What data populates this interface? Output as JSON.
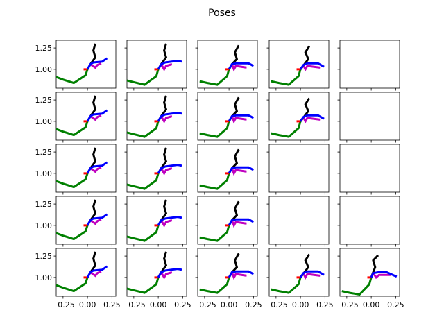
{
  "chart_data": {
    "type": "line",
    "title": "Poses",
    "grid": false,
    "legend": "none",
    "rows": 5,
    "cols": 5,
    "xlim": [
      -0.32,
      0.29
    ],
    "ylim": [
      0.78,
      1.34
    ],
    "x_ticks": [
      -0.25,
      0.0,
      0.25
    ],
    "x_tick_labels": [
      "−0.25",
      "0.00",
      "0.25"
    ],
    "y_ticks": [
      1.0,
      1.25
    ],
    "y_tick_labels": [
      "1.00",
      "1.25"
    ],
    "limb_colors": {
      "spine": "#000000",
      "left_leg": "#008000",
      "right_leg": "#0000ff",
      "left_arm": "#bf00bf",
      "right_arm": "#ff0000"
    },
    "subplots": [
      {
        "row": 0,
        "col": 0,
        "pose": "A"
      },
      {
        "row": 0,
        "col": 1,
        "pose": "B"
      },
      {
        "row": 0,
        "col": 2,
        "pose": "C"
      },
      {
        "row": 0,
        "col": 3,
        "pose": "D"
      },
      {
        "row": 0,
        "col": 4,
        "pose": null
      },
      {
        "row": 1,
        "col": 0,
        "pose": "A"
      },
      {
        "row": 1,
        "col": 1,
        "pose": "B"
      },
      {
        "row": 1,
        "col": 2,
        "pose": "C"
      },
      {
        "row": 1,
        "col": 3,
        "pose": "D"
      },
      {
        "row": 1,
        "col": 4,
        "pose": null
      },
      {
        "row": 2,
        "col": 0,
        "pose": "A"
      },
      {
        "row": 2,
        "col": 1,
        "pose": "B"
      },
      {
        "row": 2,
        "col": 2,
        "pose": "C"
      },
      {
        "row": 2,
        "col": 3,
        "pose": null
      },
      {
        "row": 2,
        "col": 4,
        "pose": null
      },
      {
        "row": 3,
        "col": 0,
        "pose": "A"
      },
      {
        "row": 3,
        "col": 1,
        "pose": "B"
      },
      {
        "row": 3,
        "col": 2,
        "pose": "C"
      },
      {
        "row": 3,
        "col": 3,
        "pose": null
      },
      {
        "row": 3,
        "col": 4,
        "pose": null
      },
      {
        "row": 4,
        "col": 0,
        "pose": "A"
      },
      {
        "row": 4,
        "col": 1,
        "pose": "B"
      },
      {
        "row": 4,
        "col": 2,
        "pose": "C"
      },
      {
        "row": 4,
        "col": 3,
        "pose": "D"
      },
      {
        "row": 4,
        "col": 4,
        "pose": "E"
      }
    ],
    "poses": {
      "A": {
        "spine": [
          [
            0.08,
            1.3
          ],
          [
            0.06,
            1.22
          ],
          [
            0.08,
            1.14
          ],
          [
            0.03,
            1.06
          ],
          [
            0.0,
            1.0
          ]
        ],
        "left_leg": [
          [
            -0.32,
            0.91
          ],
          [
            -0.25,
            0.88
          ],
          [
            -0.14,
            0.84
          ],
          [
            -0.02,
            0.93
          ],
          [
            0.0,
            1.0
          ]
        ],
        "right_leg": [
          [
            0.0,
            1.0
          ],
          [
            0.03,
            1.06
          ],
          [
            0.06,
            1.08
          ],
          [
            0.15,
            1.09
          ],
          [
            0.2,
            1.13
          ]
        ],
        "left_arm": [
          [
            0.03,
            1.06
          ],
          [
            0.08,
            1.02
          ],
          [
            0.1,
            1.05
          ],
          [
            0.14,
            1.07
          ]
        ],
        "right_arm": [
          [
            -0.04,
            1.0
          ],
          [
            0.0,
            1.0
          ]
        ]
      },
      "B": {
        "spine": [
          [
            0.08,
            1.3
          ],
          [
            0.06,
            1.22
          ],
          [
            0.08,
            1.14
          ],
          [
            0.03,
            1.06
          ],
          [
            0.0,
            1.0
          ]
        ],
        "left_leg": [
          [
            -0.32,
            0.87
          ],
          [
            -0.25,
            0.85
          ],
          [
            -0.14,
            0.82
          ],
          [
            -0.02,
            0.92
          ],
          [
            0.0,
            1.0
          ]
        ],
        "right_leg": [
          [
            0.0,
            1.0
          ],
          [
            0.03,
            1.06
          ],
          [
            0.07,
            1.08
          ],
          [
            0.2,
            1.1
          ],
          [
            0.24,
            1.09
          ]
        ],
        "left_arm": [
          [
            0.03,
            1.06
          ],
          [
            0.06,
            1.0
          ],
          [
            0.08,
            1.04
          ],
          [
            0.14,
            1.06
          ]
        ],
        "right_arm": [
          [
            -0.04,
            1.0
          ],
          [
            0.0,
            1.0
          ]
        ]
      },
      "C": {
        "spine": [
          [
            0.1,
            1.28
          ],
          [
            0.06,
            1.2
          ],
          [
            0.08,
            1.12
          ],
          [
            0.03,
            1.06
          ],
          [
            0.0,
            1.0
          ]
        ],
        "left_leg": [
          [
            -0.3,
            0.86
          ],
          [
            -0.22,
            0.84
          ],
          [
            -0.12,
            0.82
          ],
          [
            -0.02,
            0.92
          ],
          [
            0.0,
            1.0
          ]
        ],
        "right_leg": [
          [
            0.0,
            1.0
          ],
          [
            0.03,
            1.06
          ],
          [
            0.07,
            1.07
          ],
          [
            0.2,
            1.07
          ],
          [
            0.25,
            1.04
          ]
        ],
        "left_arm": [
          [
            0.03,
            1.06
          ],
          [
            0.05,
            1.0
          ],
          [
            0.07,
            1.04
          ],
          [
            0.18,
            1.02
          ]
        ],
        "right_arm": [
          [
            -0.04,
            1.0
          ],
          [
            0.0,
            1.0
          ]
        ]
      },
      "D": {
        "spine": [
          [
            0.09,
            1.27
          ],
          [
            0.05,
            1.2
          ],
          [
            0.08,
            1.12
          ],
          [
            0.04,
            1.06
          ],
          [
            0.0,
            1.0
          ]
        ],
        "left_leg": [
          [
            -0.3,
            0.86
          ],
          [
            -0.22,
            0.84
          ],
          [
            -0.12,
            0.82
          ],
          [
            -0.02,
            0.92
          ],
          [
            0.0,
            1.0
          ]
        ],
        "right_leg": [
          [
            0.0,
            1.0
          ],
          [
            0.03,
            1.05
          ],
          [
            0.07,
            1.07
          ],
          [
            0.18,
            1.07
          ],
          [
            0.24,
            1.03
          ]
        ],
        "left_arm": [
          [
            0.03,
            1.05
          ],
          [
            0.05,
            1.0
          ],
          [
            0.07,
            1.04
          ],
          [
            0.2,
            1.02
          ]
        ],
        "right_arm": [
          [
            -0.04,
            1.0
          ],
          [
            0.0,
            1.0
          ]
        ]
      },
      "E": {
        "spine": [
          [
            0.07,
            1.26
          ],
          [
            0.02,
            1.2
          ],
          [
            0.04,
            1.12
          ],
          [
            0.02,
            1.06
          ],
          [
            0.0,
            1.0
          ]
        ],
        "left_leg": [
          [
            -0.3,
            0.84
          ],
          [
            -0.22,
            0.82
          ],
          [
            -0.12,
            0.8
          ],
          [
            -0.02,
            0.92
          ],
          [
            0.0,
            1.0
          ]
        ],
        "right_leg": [
          [
            0.0,
            1.0
          ],
          [
            0.02,
            1.05
          ],
          [
            0.07,
            1.06
          ],
          [
            0.16,
            1.06
          ],
          [
            0.26,
            1.01
          ]
        ],
        "left_arm": [
          [
            0.02,
            1.05
          ],
          [
            0.05,
            1.0
          ],
          [
            0.08,
            1.03
          ],
          [
            0.2,
            1.03
          ]
        ],
        "right_arm": [
          [
            -0.04,
            1.0
          ],
          [
            0.0,
            1.0
          ]
        ]
      }
    }
  }
}
